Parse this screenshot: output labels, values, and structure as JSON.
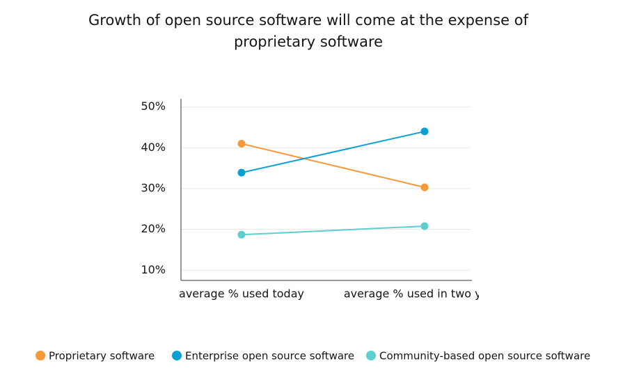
{
  "chart_data": {
    "type": "line",
    "title": "Growth of open source software will come at the expense of proprietary software",
    "categories": [
      "average % used today",
      "average % used in two years"
    ],
    "series": [
      {
        "name": "Proprietary software",
        "color": "#f7993a",
        "values": [
          41,
          30.3
        ]
      },
      {
        "name": "Enterprise open source software",
        "color": "#0aa1d2",
        "values": [
          33.9,
          44
        ]
      },
      {
        "name": "Community-based open source software",
        "color": "#5ecfcf",
        "values": [
          18.7,
          20.8
        ]
      }
    ],
    "ylim": [
      7.5,
      52
    ],
    "yticks": [
      {
        "value": 10,
        "label": "10%"
      },
      {
        "value": 20,
        "label": "20%"
      },
      {
        "value": 30,
        "label": "30%"
      },
      {
        "value": 40,
        "label": "40%"
      },
      {
        "value": 50,
        "label": "50%"
      }
    ],
    "grid": true,
    "legend": "bottom"
  }
}
